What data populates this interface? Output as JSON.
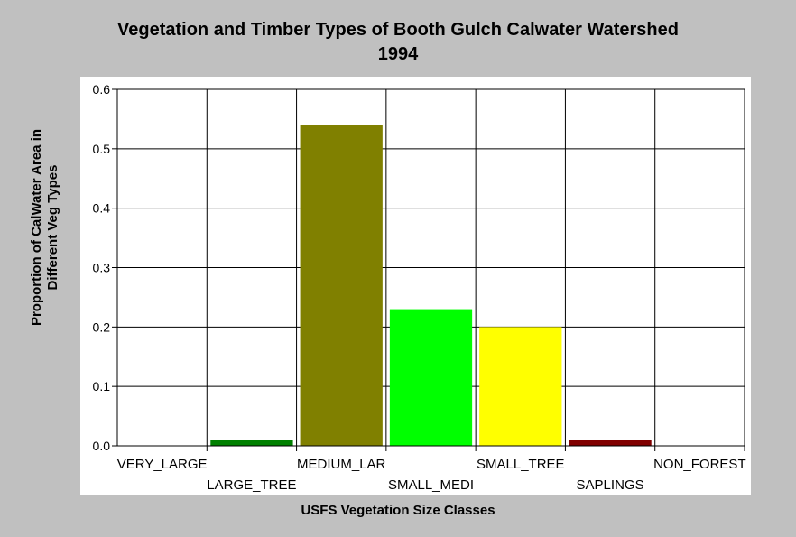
{
  "chart_data": {
    "type": "bar",
    "title": "Vegetation and Timber Types of Booth Gulch Calwater Watershed",
    "subtitle": "1994",
    "xlabel": "USFS Vegetation Size Classes",
    "ylabel_line1": "Proportion of CalWater Area in",
    "ylabel_line2": "Different Veg Types",
    "categories": [
      "VERY_LARGE",
      "LARGE_TREE",
      "MEDIUM_LAR",
      "SMALL_MEDI",
      "SMALL_TREE",
      "SAPLINGS",
      "NON_FOREST"
    ],
    "values": [
      0.0,
      0.01,
      0.54,
      0.23,
      0.2,
      0.01,
      0.0
    ],
    "colors": [
      "#008000",
      "#008000",
      "#808000",
      "#00ff00",
      "#ffff00",
      "#800000",
      "#808080"
    ],
    "ylim": [
      0,
      0.6
    ],
    "yticks": [
      "0.0",
      "0.1",
      "0.2",
      "0.3",
      "0.4",
      "0.5",
      "0.6"
    ],
    "grid": true
  }
}
